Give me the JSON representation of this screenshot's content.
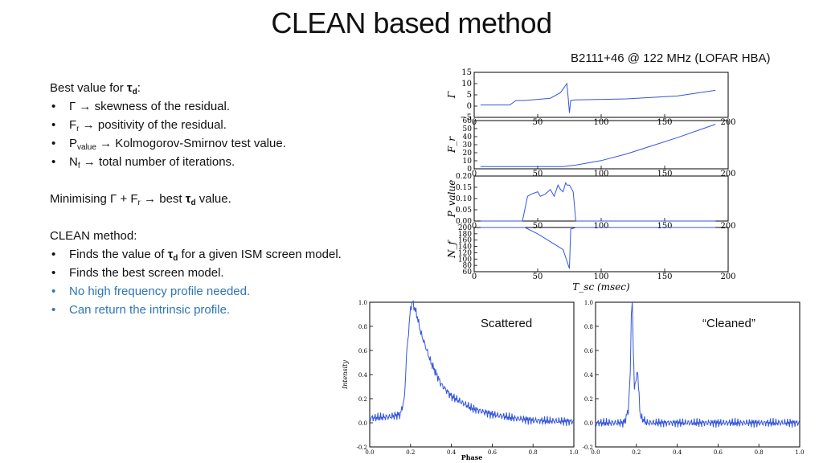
{
  "slide": {
    "title": "CLEAN based method",
    "subtitle": "B2111+46 @ 122 MHz (LOFAR HBA)"
  },
  "left_text": {
    "best_value_prefix": "Best value for ",
    "tau": "τ",
    "d_sub": "d",
    "colon": ":",
    "bullets": [
      {
        "sym": "Γ",
        "sub": "",
        "text": " → skewness of the residual."
      },
      {
        "sym": "F",
        "sub": "r",
        "text": " → positivity of the residual."
      },
      {
        "sym": "P",
        "sub": "value",
        "text": " → Kolmogorov-Smirnov test value."
      },
      {
        "sym": "N",
        "sub": "f",
        "text": " → total number of iterations."
      }
    ],
    "minimising_prefix": "Minimising Γ + F",
    "minimising_sub": "r",
    "minimising_mid": " → best ",
    "minimising_suffix": " value.",
    "clean_header": "CLEAN method:",
    "clean_b1_prefix": "Finds the value of ",
    "clean_b1_suffix": " for a given ISM screen model.",
    "clean_b2": "Finds the best screen model.",
    "clean_b3": "No high frequency profile needed.",
    "clean_b4": "Can return the intrinsic profile."
  },
  "plot_labels": {
    "scattered": "Scattered",
    "cleaned": "“Cleaned”"
  },
  "colors": {
    "line": "#3355dd",
    "accent_blue": "#2e75b6"
  },
  "chart_data": [
    {
      "type": "line",
      "title": "",
      "ylabel": "Γ",
      "xlim": [
        0,
        200
      ],
      "ylim": [
        -5,
        15
      ],
      "yticks": [
        "15",
        "10",
        "5",
        "0",
        "−5"
      ],
      "xticks": [
        "0",
        "50",
        "100",
        "150",
        "200"
      ],
      "series": [
        {
          "x": [
            5,
            28,
            33,
            40,
            60,
            68,
            73,
            74,
            75,
            76,
            80,
            120,
            160,
            190
          ],
          "y": [
            0.5,
            0.5,
            2.5,
            2.5,
            3.5,
            6,
            10,
            4,
            -3,
            2.5,
            2.8,
            3.2,
            4.5,
            7
          ]
        }
      ]
    },
    {
      "type": "line",
      "title": "",
      "ylabel": "F_r",
      "xlim": [
        0,
        200
      ],
      "ylim": [
        0,
        65
      ],
      "yticks": [
        "60",
        "50",
        "40",
        "30",
        "20",
        "10",
        "0"
      ],
      "xticks": [
        "0",
        "50",
        "100",
        "150",
        "200"
      ],
      "series": [
        {
          "x": [
            5,
            40,
            70,
            80,
            100,
            120,
            140,
            160,
            190
          ],
          "y": [
            3,
            3,
            3,
            5,
            11,
            20,
            31,
            42,
            60
          ]
        }
      ]
    },
    {
      "type": "line",
      "title": "",
      "ylabel": "P_value",
      "xlim": [
        0,
        200
      ],
      "ylim": [
        0,
        0.2
      ],
      "yticks": [
        "0.20",
        "0.15",
        "0.10",
        "0.05",
        "0.00"
      ],
      "xticks": [
        "0",
        "50",
        "100",
        "150",
        "200"
      ],
      "series": [
        {
          "x": [
            5,
            38,
            42,
            45,
            50,
            52,
            56,
            60,
            63,
            66,
            68,
            70,
            72,
            73,
            75,
            78,
            80,
            190
          ],
          "y": [
            0,
            0,
            0.11,
            0.12,
            0.13,
            0.11,
            0.12,
            0.14,
            0.11,
            0.16,
            0.14,
            0.13,
            0.17,
            0.16,
            0.16,
            0.13,
            0,
            0
          ]
        }
      ]
    },
    {
      "type": "line",
      "title": "",
      "ylabel": "N_f",
      "xlabel": "T_sc (msec)",
      "xlim": [
        0,
        200
      ],
      "ylim": [
        60,
        200
      ],
      "yticks": [
        "200",
        "180",
        "160",
        "140",
        "120",
        "100",
        "80",
        "60"
      ],
      "xticks": [
        "0",
        "50",
        "100",
        "150",
        "200"
      ],
      "series": [
        {
          "x": [
            5,
            40,
            50,
            60,
            70,
            75,
            76,
            80,
            190
          ],
          "y": [
            200,
            200,
            180,
            155,
            130,
            70,
            195,
            200,
            200
          ]
        }
      ]
    },
    {
      "type": "line",
      "title": "",
      "ylabel": "Intensity",
      "xlabel": "Phase",
      "xlim": [
        0,
        1.0
      ],
      "ylim": [
        -0.2,
        1.0
      ],
      "yticks": [
        "1.0",
        "0.8",
        "0.6",
        "0.4",
        "0.2",
        "0.0",
        "-0.2"
      ],
      "xticks": [
        "0.0",
        "0.2",
        "0.4",
        "0.6",
        "0.8",
        "1.0"
      ],
      "series": [
        {
          "name": "",
          "x": [
            0.0,
            0.1,
            0.15,
            0.17,
            0.18,
            0.2,
            0.21,
            0.23,
            0.25,
            0.3,
            0.35,
            0.4,
            0.5,
            0.6,
            0.7,
            0.8,
            1.0
          ],
          "y": [
            0.04,
            0.05,
            0.07,
            0.2,
            0.55,
            0.95,
            1.0,
            0.9,
            0.75,
            0.5,
            0.32,
            0.22,
            0.12,
            0.07,
            0.04,
            0.02,
            0.01
          ]
        }
      ]
    },
    {
      "type": "line",
      "title": "",
      "ylabel": "",
      "xlim": [
        0,
        1.0
      ],
      "ylim": [
        -0.2,
        1.0
      ],
      "yticks": [
        "1.0",
        "0.8",
        "0.6",
        "0.4",
        "0.2",
        "0.0",
        "-0.2"
      ],
      "xticks": [
        "0.0",
        "0.2",
        "0.4",
        "0.6",
        "0.8",
        "1.0"
      ],
      "series": [
        {
          "name": "",
          "x": [
            0.0,
            0.14,
            0.16,
            0.17,
            0.175,
            0.18,
            0.185,
            0.19,
            0.2,
            0.205,
            0.21,
            0.22,
            0.25,
            0.5,
            1.0
          ],
          "y": [
            0.0,
            0.0,
            0.1,
            0.4,
            0.9,
            1.0,
            0.6,
            0.3,
            0.35,
            0.45,
            0.3,
            0.05,
            0.0,
            0.0,
            0.0
          ]
        }
      ]
    }
  ]
}
